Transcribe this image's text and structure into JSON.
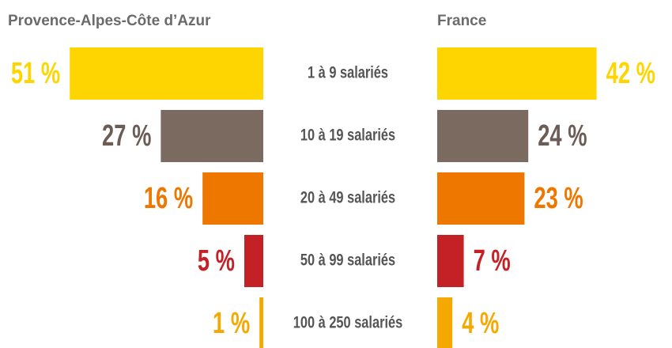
{
  "chart_data": {
    "type": "butterfly",
    "categories": [
      "1 à 9 salariés",
      "10 à 19 salariés",
      "20 à 49 salariés",
      "50 à 99 salariés",
      "100 à 250 salariés"
    ],
    "colors": [
      "#FFD500",
      "#7A6A60",
      "#EE7700",
      "#C42127",
      "#F5A800"
    ],
    "series": [
      {
        "name": "Provence-Alpes-Côte d’Azur",
        "values": [
          51,
          27,
          16,
          5,
          1
        ],
        "value_labels": [
          "51 %",
          "27 %",
          "16 %",
          "5 %",
          "1 %"
        ]
      },
      {
        "name": "France",
        "values": [
          42,
          24,
          23,
          7,
          4
        ],
        "value_labels": [
          "42 %",
          "24 %",
          "23 %",
          "7 %",
          "4 %"
        ]
      }
    ]
  }
}
